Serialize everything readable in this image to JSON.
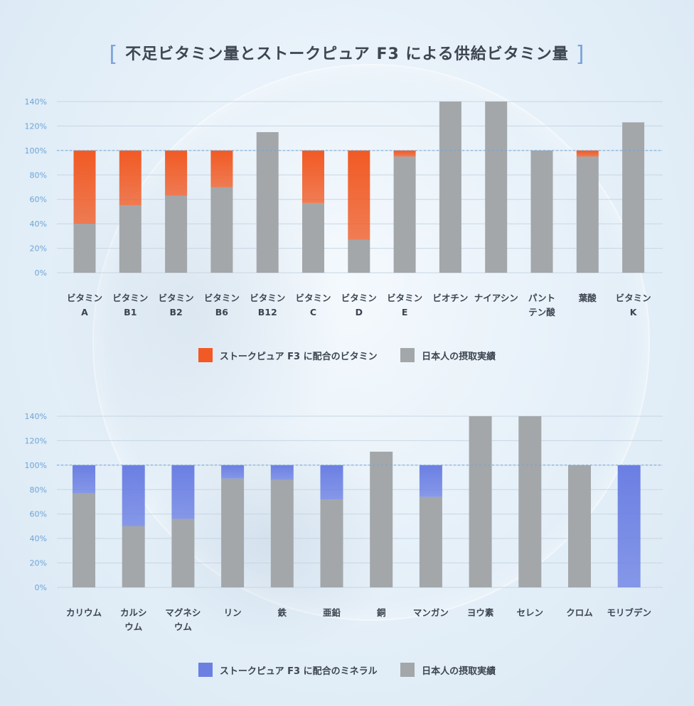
{
  "page": {
    "title": "不足ビタミン量とストークピュア F3 による供給ビタミン量",
    "bracket_left": "[",
    "bracket_right": "]"
  },
  "colors": {
    "vitamin_supply": "#f15a24",
    "mineral_supply": "#6b7fe3",
    "intake": "#a3a7aa",
    "axis_text": "#6fa5d6",
    "grid": "#c7d6e3",
    "ref_line": "#6fa5d6"
  },
  "chart_data": [
    {
      "type": "bar",
      "stacked": true,
      "title": "",
      "categories": [
        [
          "ビタミン",
          "A"
        ],
        [
          "ビタミン",
          "B1"
        ],
        [
          "ビタミン",
          "B2"
        ],
        [
          "ビタミン",
          "B6"
        ],
        [
          "ビタミン",
          "B12"
        ],
        [
          "ビタミン",
          "C"
        ],
        [
          "ビタミン",
          "D"
        ],
        [
          "ビタミン",
          "E"
        ],
        [
          "ビオチン"
        ],
        [
          "ナイアシン"
        ],
        [
          "パント",
          "テン酸"
        ],
        [
          "葉酸"
        ],
        [
          "ビタミン",
          "K"
        ]
      ],
      "series": [
        {
          "name": "日本人の摂取実績",
          "values": [
            40,
            55,
            63,
            70,
            115,
            57,
            27,
            95,
            140,
            140,
            100,
            95,
            123
          ]
        },
        {
          "name": "ストークピュア F3 に配合のビタミン",
          "values": [
            60,
            45,
            37,
            30,
            0,
            43,
            73,
            5,
            0,
            0,
            0,
            5,
            0
          ]
        }
      ],
      "ylim": [
        0,
        140
      ],
      "yticks": [
        "0%",
        "20%",
        "40%",
        "60%",
        "80%",
        "100%",
        "120%",
        "140%"
      ],
      "reference_line": 100,
      "grid": true,
      "legend": [
        {
          "label": "ストークピュア F3 に配合のビタミン",
          "color": "#f15a24"
        },
        {
          "label": "日本人の摂取実績",
          "color": "#a3a7aa"
        }
      ],
      "legend_position": "bottom"
    },
    {
      "type": "bar",
      "stacked": true,
      "title": "",
      "categories": [
        [
          "カリウム"
        ],
        [
          "カルシ",
          "ウム"
        ],
        [
          "マグネシ",
          "ウム"
        ],
        [
          "リン"
        ],
        [
          "鉄"
        ],
        [
          "亜鉛"
        ],
        [
          "銅"
        ],
        [
          "マンガン"
        ],
        [
          "ヨウ素"
        ],
        [
          "セレン"
        ],
        [
          "クロム"
        ],
        [
          "モリブデン"
        ]
      ],
      "series": [
        {
          "name": "日本人の摂取実績",
          "values": [
            77,
            50,
            56,
            89,
            88,
            72,
            111,
            74,
            140,
            140,
            100,
            0
          ]
        },
        {
          "name": "ストークピュア F3 に配合のミネラル",
          "values": [
            23,
            50,
            44,
            11,
            12,
            28,
            0,
            26,
            0,
            0,
            0,
            100
          ]
        }
      ],
      "ylim": [
        0,
        140
      ],
      "yticks": [
        "0%",
        "20%",
        "40%",
        "60%",
        "80%",
        "100%",
        "120%",
        "140%"
      ],
      "reference_line": 100,
      "grid": true,
      "legend": [
        {
          "label": "ストークピュア F3 に配合のミネラル",
          "color": "#6b7fe3"
        },
        {
          "label": "日本人の摂取実績",
          "color": "#a3a7aa"
        }
      ],
      "legend_position": "bottom"
    }
  ]
}
